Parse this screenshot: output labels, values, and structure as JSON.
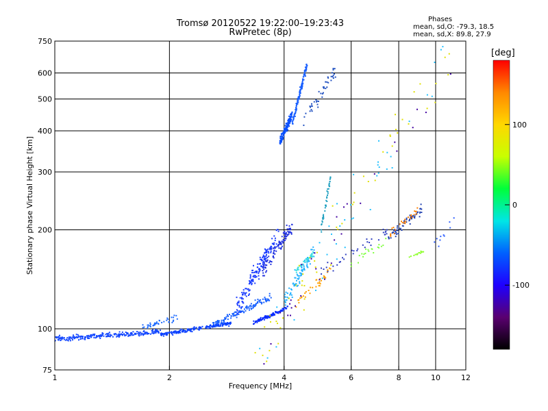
{
  "chart_data": {
    "type": "scatter",
    "title": "Tromsø 20120522 19:22:00–19:23:43",
    "subtitle": "RwPretec (8p)",
    "xlabel": "Frequency [MHz]",
    "ylabel": "Stationary phase Virtual Height [km]",
    "x_scale": "log",
    "y_scale": "log",
    "xlim": [
      1,
      12
    ],
    "ylim": [
      75,
      750
    ],
    "x_ticks": [
      1,
      2,
      4,
      6,
      8,
      10,
      12
    ],
    "y_ticks": [
      75,
      100,
      200,
      300,
      400,
      500,
      600,
      750
    ],
    "grid_x": [
      2,
      4,
      6,
      8,
      10
    ],
    "grid_y": [
      100,
      200,
      300,
      400,
      500,
      600
    ],
    "grid": true,
    "phase_info": {
      "title": "Phases",
      "line1": "mean, sd,O: -79.3, 18.5",
      "line2": "mean, sd,X: 89.8, 27.9"
    },
    "colorbar": {
      "label": "[deg]",
      "ticks": [
        100,
        0,
        -100
      ],
      "range": [
        -180,
        180
      ],
      "colors": [
        "#000000",
        "#5a0070",
        "#1f00ff",
        "#0060ff",
        "#00e6e6",
        "#00ff3a",
        "#c8ff00",
        "#ffd700",
        "#ff8800",
        "#ff0000"
      ]
    },
    "clusters": [
      {
        "f0": 1.0,
        "f1": 1.9,
        "h0": 93,
        "h1": 98,
        "spread": 0.018,
        "n": 260,
        "color": "#1448ff"
      },
      {
        "f0": 1.7,
        "f1": 2.1,
        "h0": 102,
        "h1": 108,
        "spread": 0.02,
        "n": 40,
        "color": "#1e6bff"
      },
      {
        "f0": 1.9,
        "f1": 2.9,
        "h0": 96,
        "h1": 104,
        "spread": 0.012,
        "n": 180,
        "color": "#0a40ff"
      },
      {
        "f0": 2.6,
        "f1": 3.7,
        "h0": 103,
        "h1": 125,
        "spread": 0.025,
        "n": 120,
        "color": "#1860ff"
      },
      {
        "f0": 3.3,
        "f1": 4.1,
        "h0": 104,
        "h1": 116,
        "spread": 0.01,
        "n": 120,
        "color": "#0a2cff"
      },
      {
        "f0": 3.0,
        "f1": 3.9,
        "h0": 115,
        "h1": 200,
        "spread": 0.06,
        "n": 160,
        "color": "#1a3cff"
      },
      {
        "f0": 3.5,
        "f1": 4.2,
        "h0": 150,
        "h1": 205,
        "spread": 0.05,
        "n": 110,
        "color": "#2030e0"
      },
      {
        "f0": 4.0,
        "f1": 4.8,
        "h0": 120,
        "h1": 175,
        "spread": 0.05,
        "n": 90,
        "color": "#20b0ff"
      },
      {
        "f0": 4.3,
        "f1": 4.8,
        "h0": 150,
        "h1": 170,
        "spread": 0.02,
        "n": 40,
        "color": "#40e0e0"
      },
      {
        "f0": 4.3,
        "f1": 5.3,
        "h0": 120,
        "h1": 150,
        "spread": 0.03,
        "n": 35,
        "color": "#ffa000"
      },
      {
        "f0": 3.9,
        "f1": 4.2,
        "h0": 370,
        "h1": 450,
        "spread": 0.03,
        "n": 160,
        "color": "#0a50ff"
      },
      {
        "f0": 4.2,
        "f1": 4.6,
        "h0": 420,
        "h1": 640,
        "spread": 0.03,
        "n": 130,
        "color": "#1a60ff"
      },
      {
        "f0": 4.5,
        "f1": 5.5,
        "h0": 430,
        "h1": 620,
        "spread": 0.05,
        "n": 45,
        "color": "#2050c0"
      },
      {
        "f0": 5.0,
        "f1": 5.3,
        "h0": 200,
        "h1": 290,
        "spread": 0.03,
        "n": 40,
        "color": "#20a0c0"
      },
      {
        "f0": 5.0,
        "f1": 7.5,
        "h0": 150,
        "h1": 200,
        "spread": 0.05,
        "n": 35,
        "color": "#3040c0"
      },
      {
        "f0": 6.0,
        "f1": 7.5,
        "h0": 160,
        "h1": 185,
        "spread": 0.04,
        "n": 20,
        "color": "#80ff40"
      },
      {
        "f0": 7.5,
        "f1": 9.2,
        "h0": 190,
        "h1": 230,
        "spread": 0.03,
        "n": 60,
        "color": "#2040b0"
      },
      {
        "f0": 7.6,
        "f1": 9.0,
        "h0": 195,
        "h1": 230,
        "spread": 0.03,
        "n": 25,
        "color": "#ff8000"
      },
      {
        "f0": 8.5,
        "f1": 9.3,
        "h0": 165,
        "h1": 172,
        "spread": 0.01,
        "n": 15,
        "color": "#90ff30"
      },
      {
        "f0": 9.8,
        "f1": 12.0,
        "h0": 180,
        "h1": 230,
        "spread": 0.05,
        "n": 10,
        "color": "#3060ff"
      },
      {
        "f0": 3.3,
        "f1": 11.0,
        "h0": 80,
        "h1": 700,
        "spread": 0.2,
        "n": 55,
        "color": "#e0e000"
      },
      {
        "f0": 3.3,
        "f1": 11.0,
        "h0": 80,
        "h1": 700,
        "spread": 0.2,
        "n": 40,
        "color": "#20c0ff"
      },
      {
        "f0": 3.5,
        "f1": 11.0,
        "h0": 90,
        "h1": 650,
        "spread": 0.2,
        "n": 30,
        "color": "#4000a0"
      }
    ]
  }
}
